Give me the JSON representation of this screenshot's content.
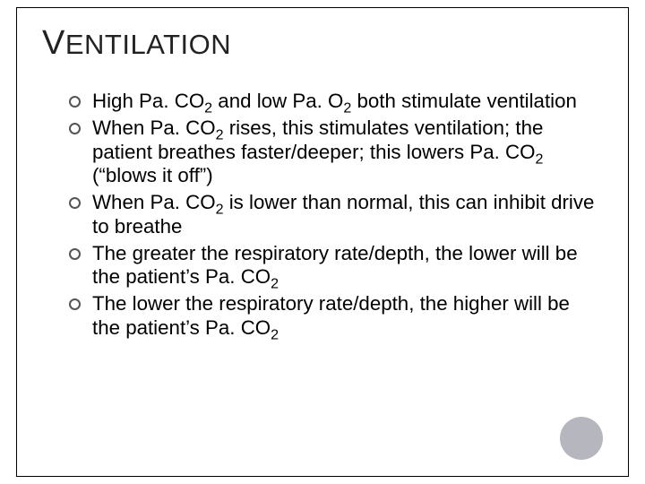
{
  "slide": {
    "title_first": "V",
    "title_rest": "ENTILATION",
    "accent_circle_color": "#7a7a8a",
    "bullet_border_color": "#555555",
    "text_color": "#000000",
    "background_color": "#ffffff",
    "border_color": "#000000",
    "title_fontsize": 31,
    "body_fontsize": 22.3,
    "bullets": [
      {
        "html": "High Pa. CO<sub>2</sub> and low Pa. O<sub>2</sub> both stimulate ventilation"
      },
      {
        "html": "When Pa. CO<sub>2</sub> rises, this stimulates ventilation; the patient breathes faster/deeper; this lowers Pa. CO<sub>2</sub> (“blows it off”)"
      },
      {
        "html": "When Pa. CO<sub>2</sub> is lower than normal, this can inhibit drive to breathe"
      },
      {
        "html": "The greater the respiratory rate/depth, the lower will be the patient’s Pa. CO<sub>2</sub>"
      },
      {
        "html": "The lower the respiratory rate/depth, the higher will be the patient’s Pa. CO<sub>2</sub>"
      }
    ]
  }
}
